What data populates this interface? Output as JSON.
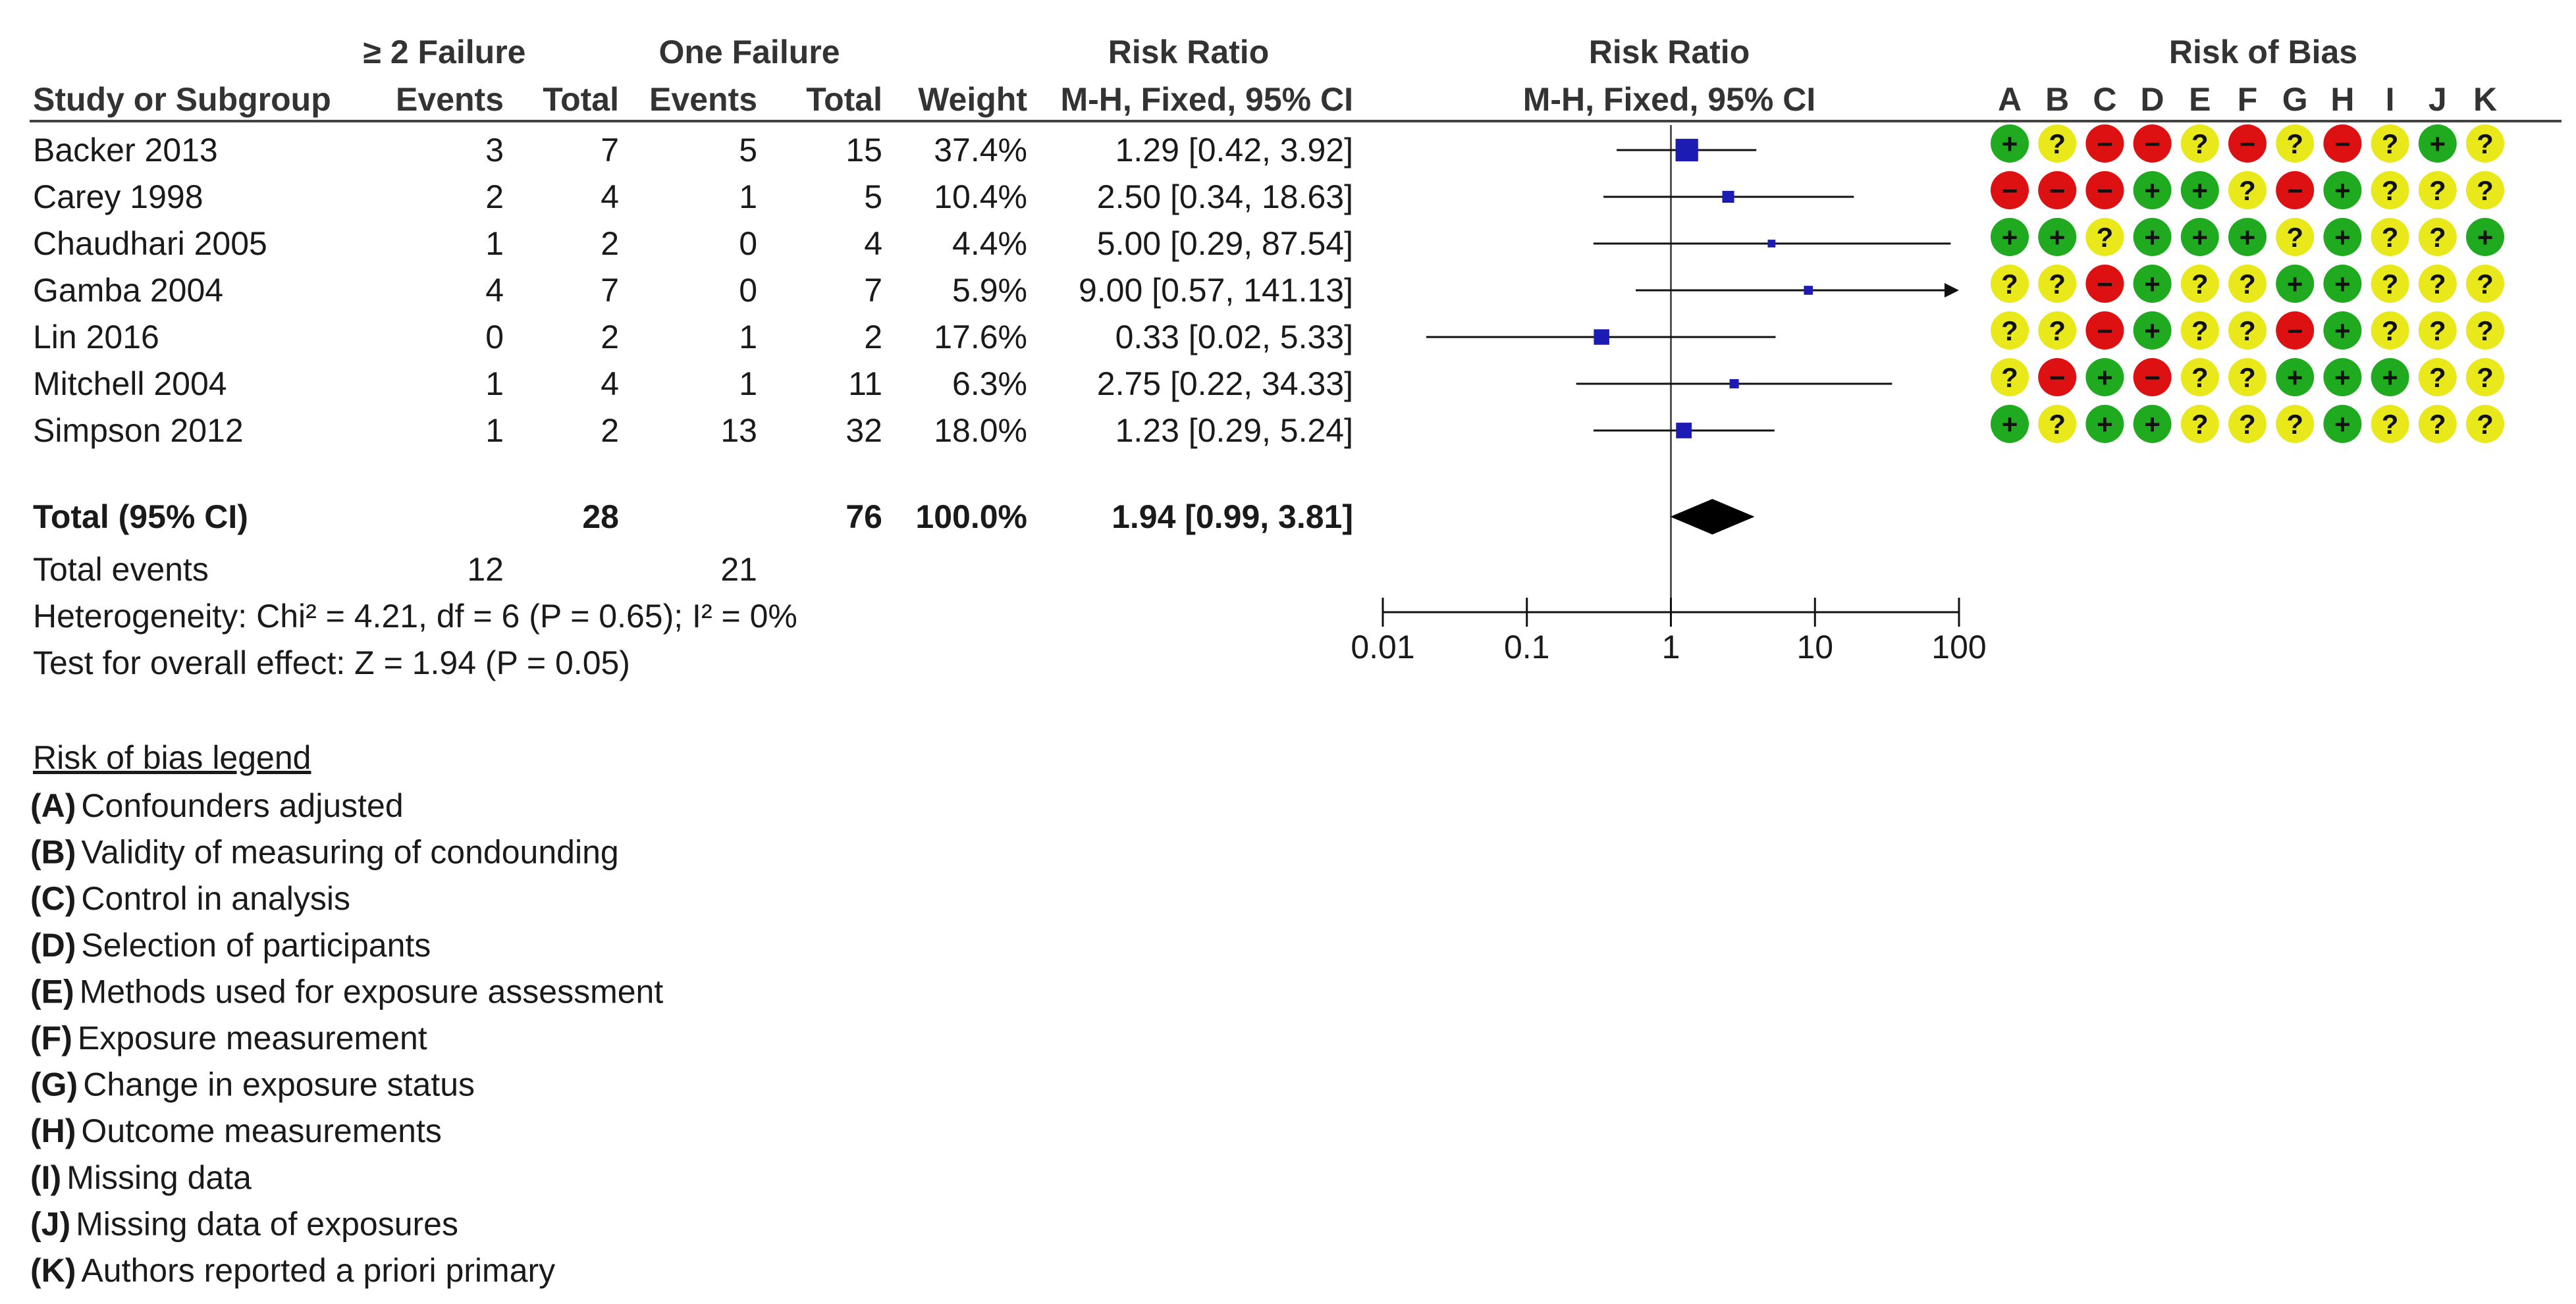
{
  "headers": {
    "group1": "≥ 2 Failure",
    "group2": "One Failure",
    "rr_title": "Risk Ratio",
    "rr_method": "M-H, Fixed, 95% CI",
    "plot_title": "Risk Ratio",
    "plot_method": "M-H, Fixed, 95% CI",
    "bias_title": "Risk of Bias",
    "study": "Study or Subgroup",
    "events1": "Events",
    "total1": "Total",
    "events2": "Events",
    "total2": "Total",
    "weight": "Weight"
  },
  "studies": [
    {
      "name": "Backer 2013",
      "e1": "3",
      "t1": "7",
      "e2": "5",
      "t2": "15",
      "weight": "37.4%",
      "ci": "1.29 [0.42, 3.92]"
    },
    {
      "name": "Carey 1998",
      "e1": "2",
      "t1": "4",
      "e2": "1",
      "t2": "5",
      "weight": "10.4%",
      "ci": "2.50 [0.34, 18.63]"
    },
    {
      "name": "Chaudhari 2005",
      "e1": "1",
      "t1": "2",
      "e2": "0",
      "t2": "4",
      "weight": "4.4%",
      "ci": "5.00 [0.29, 87.54]"
    },
    {
      "name": "Gamba 2004",
      "e1": "4",
      "t1": "7",
      "e2": "0",
      "t2": "7",
      "weight": "5.9%",
      "ci": "9.00 [0.57, 141.13]"
    },
    {
      "name": "Lin 2016",
      "e1": "0",
      "t1": "2",
      "e2": "1",
      "t2": "2",
      "weight": "17.6%",
      "ci": "0.33 [0.02, 5.33]"
    },
    {
      "name": "Mitchell 2004",
      "e1": "1",
      "t1": "4",
      "e2": "1",
      "t2": "11",
      "weight": "6.3%",
      "ci": "2.75 [0.22, 34.33]"
    },
    {
      "name": "Simpson 2012",
      "e1": "1",
      "t1": "2",
      "e2": "13",
      "t2": "32",
      "weight": "18.0%",
      "ci": "1.23 [0.29, 5.24]"
    }
  ],
  "total": {
    "label": "Total (95% CI)",
    "t1": "28",
    "t2": "76",
    "weight": "100.0%",
    "ci": "1.94 [0.99, 3.81]"
  },
  "total_events": {
    "label": "Total events",
    "e1": "12",
    "e2": "21"
  },
  "heterogeneity": "Heterogeneity: Chi² = 4.21, df = 6 (P = 0.65); I² = 0%",
  "overall_effect": "Test for overall effect: Z = 1.94 (P = 0.05)",
  "bias_domains": [
    "A",
    "B",
    "C",
    "D",
    "E",
    "F",
    "G",
    "H",
    "I",
    "J",
    "K"
  ],
  "bias_symbols": {
    "low": "+",
    "unclear": "?",
    "high": "−"
  },
  "bias_colors": {
    "low": "#1faa1f",
    "unclear": "#e8e81a",
    "high": "#dd1111"
  },
  "legend": {
    "title": "Risk of bias legend",
    "items": [
      {
        "key": "(A)",
        "text": "Confounders adjusted"
      },
      {
        "key": "(B)",
        "text": "Validity of measuring of condounding"
      },
      {
        "key": "(C)",
        "text": "Control in analysis"
      },
      {
        "key": "(D)",
        "text": "Selection of participants"
      },
      {
        "key": "(E)",
        "text": "Methods used for exposure assessment"
      },
      {
        "key": "(F)",
        "text": "Exposure measurement"
      },
      {
        "key": "(G)",
        "text": "Change in exposure status"
      },
      {
        "key": "(H)",
        "text": "Outcome measurements"
      },
      {
        "key": "(I)",
        "text": "Missing data"
      },
      {
        "key": "(J)",
        "text": "Missing data of exposures"
      },
      {
        "key": "(K)",
        "text": "Authors reported a priori primary"
      }
    ]
  },
  "chart_data": {
    "type": "forest",
    "title": "Risk Ratio",
    "subtitle": "M-H, Fixed, 95% CI",
    "x_scale": "log",
    "xlim": [
      0.01,
      100
    ],
    "x_ticks": [
      "0.01",
      "0.1",
      "1",
      "10",
      "100"
    ],
    "x_tick_values": [
      0.01,
      0.1,
      1,
      10,
      100
    ],
    "null_line": 1,
    "series": [
      {
        "name": "Backer 2013",
        "rr": 1.29,
        "lo": 0.42,
        "hi": 3.92,
        "weight": 37.4
      },
      {
        "name": "Carey 1998",
        "rr": 2.5,
        "lo": 0.34,
        "hi": 18.63,
        "weight": 10.4
      },
      {
        "name": "Chaudhari 2005",
        "rr": 5.0,
        "lo": 0.29,
        "hi": 87.54,
        "weight": 4.4
      },
      {
        "name": "Gamba 2004",
        "rr": 9.0,
        "lo": 0.57,
        "hi": 141.13,
        "weight": 5.9
      },
      {
        "name": "Lin 2016",
        "rr": 0.33,
        "lo": 0.02,
        "hi": 5.33,
        "weight": 17.6
      },
      {
        "name": "Mitchell 2004",
        "rr": 2.75,
        "lo": 0.22,
        "hi": 34.33,
        "weight": 6.3
      },
      {
        "name": "Simpson 2012",
        "rr": 1.23,
        "lo": 0.29,
        "hi": 5.24,
        "weight": 18.0
      }
    ],
    "pooled": {
      "rr": 1.94,
      "lo": 0.99,
      "hi": 3.81
    },
    "risk_of_bias": [
      [
        "low",
        "unclear",
        "high",
        "high",
        "unclear",
        "high",
        "unclear",
        "high",
        "unclear",
        "low",
        "unclear"
      ],
      [
        "high",
        "high",
        "high",
        "low",
        "low",
        "unclear",
        "high",
        "low",
        "unclear",
        "unclear",
        "unclear"
      ],
      [
        "low",
        "low",
        "unclear",
        "low",
        "low",
        "low",
        "unclear",
        "low",
        "unclear",
        "unclear",
        "low"
      ],
      [
        "unclear",
        "unclear",
        "high",
        "low",
        "unclear",
        "unclear",
        "low",
        "low",
        "unclear",
        "unclear",
        "unclear"
      ],
      [
        "unclear",
        "unclear",
        "high",
        "low",
        "unclear",
        "unclear",
        "high",
        "low",
        "unclear",
        "unclear",
        "unclear"
      ],
      [
        "unclear",
        "high",
        "low",
        "high",
        "unclear",
        "unclear",
        "low",
        "low",
        "low",
        "unclear",
        "unclear"
      ],
      [
        "low",
        "unclear",
        "low",
        "low",
        "unclear",
        "unclear",
        "unclear",
        "low",
        "unclear",
        "unclear",
        "unclear"
      ]
    ]
  }
}
